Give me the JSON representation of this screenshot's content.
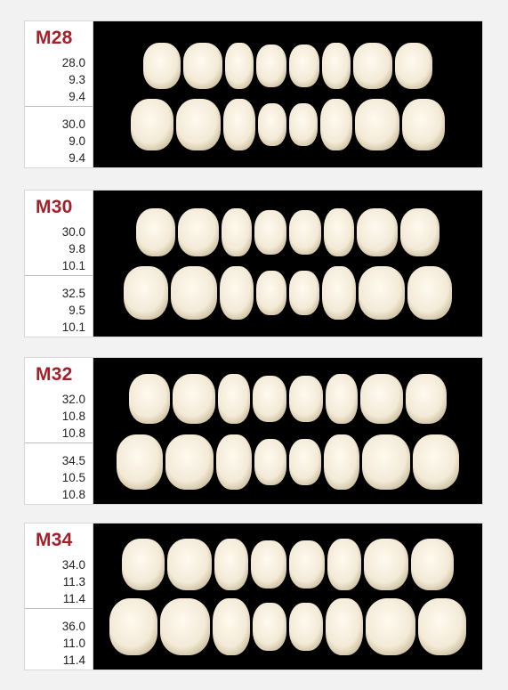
{
  "colors": {
    "mould_text": "#a3202a",
    "panel_bg": "#000000",
    "tooth": "#f3ead7"
  },
  "moulds": [
    {
      "id": "M28",
      "upper": [
        "28.0",
        "9.3",
        "9.4"
      ],
      "lower": [
        "30.0",
        "9.0",
        "9.4"
      ]
    },
    {
      "id": "M30",
      "upper": [
        "30.0",
        "9.8",
        "10.1"
      ],
      "lower": [
        "32.5",
        "9.5",
        "10.1"
      ]
    },
    {
      "id": "M32",
      "upper": [
        "32.0",
        "10.8",
        "10.8"
      ],
      "lower": [
        "34.5",
        "10.5",
        "10.8"
      ]
    },
    {
      "id": "M34",
      "upper": [
        "34.0",
        "11.3",
        "11.4"
      ],
      "lower": [
        "36.0",
        "11.0",
        "11.4"
      ]
    }
  ]
}
